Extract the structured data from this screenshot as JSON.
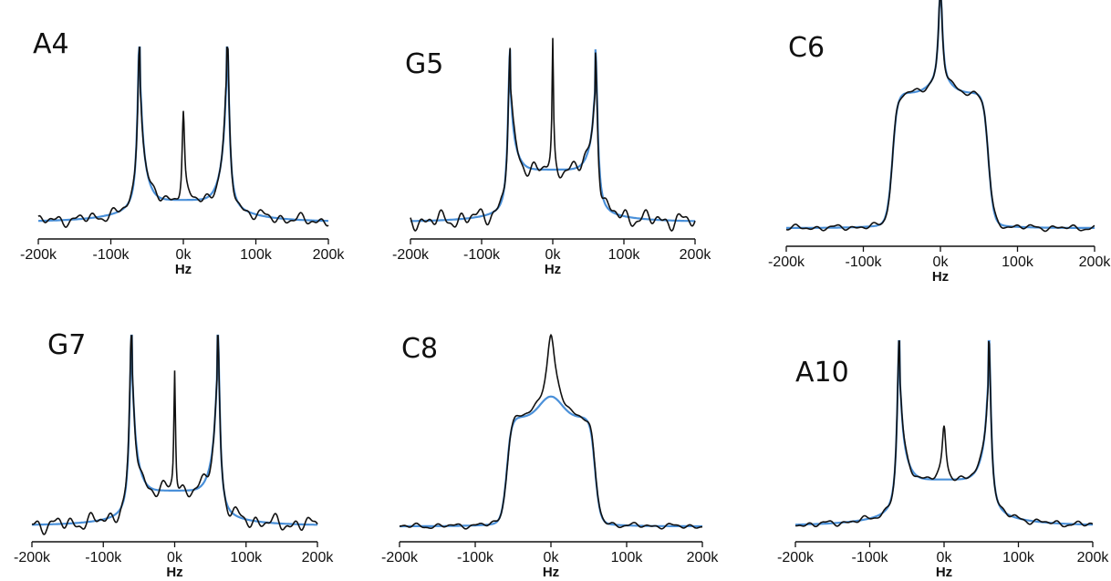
{
  "chart_data": [
    {
      "type": "line",
      "title": "A4",
      "xlabel": "Hz",
      "xlim": [
        -200000,
        200000
      ],
      "ylim": [
        0,
        1.15
      ],
      "xticks": [
        -200000,
        -100000,
        0,
        100000,
        200000
      ],
      "xtick_labels": [
        "-200k",
        "-100k",
        "0k",
        "100k",
        "200k"
      ],
      "model": {
        "kind": "pake",
        "horn": 60000,
        "peak": 1.0,
        "center": 0.15,
        "spike": 0.62,
        "spikeW": 2000,
        "tail": 0.1,
        "base": 0.0,
        "noise": 0.04
      },
      "series": [
        {
          "name": "",
          "color": "#111111"
        },
        {
          "name": "",
          "color": "#4a90d9"
        }
      ]
    },
    {
      "type": "line",
      "title": "G5",
      "xlabel": "Hz",
      "xlim": [
        -200000,
        200000
      ],
      "ylim": [
        0,
        1.15
      ],
      "xticks": [
        -200000,
        -100000,
        0,
        100000,
        200000
      ],
      "xtick_labels": [
        "-200k",
        "-100k",
        "0k",
        "100k",
        "200k"
      ],
      "model": {
        "kind": "pake",
        "horn": 60000,
        "peak": 0.78,
        "center": 0.3,
        "spike": 0.72,
        "spikeW": 1200,
        "tail": 0.06,
        "base": 0.0,
        "noise": 0.05
      },
      "series": [
        {
          "name": "",
          "color": "#111111"
        },
        {
          "name": "",
          "color": "#4a90d9"
        }
      ]
    },
    {
      "type": "line",
      "title": "C6",
      "xlabel": "Hz",
      "xlim": [
        -200000,
        200000
      ],
      "ylim": [
        0,
        1.15
      ],
      "xticks": [
        -200000,
        -100000,
        0,
        100000,
        200000
      ],
      "xtick_labels": [
        "-200k",
        "-100k",
        "0k",
        "100k",
        "200k"
      ],
      "model": {
        "kind": "plateau",
        "edge": 62000,
        "level": 0.68,
        "hump": 0.05,
        "spike": 0.5,
        "spikeW": 3000,
        "base": 0.0,
        "noise": 0.015
      },
      "series": [
        {
          "name": "",
          "color": "#111111"
        },
        {
          "name": "",
          "color": "#4a90d9"
        }
      ]
    },
    {
      "type": "line",
      "title": "G7",
      "xlabel": "Hz",
      "xlim": [
        -200000,
        200000
      ],
      "ylim": [
        0,
        1.15
      ],
      "xticks": [
        -200000,
        -100000,
        0,
        100000,
        200000
      ],
      "xtick_labels": [
        "-200k",
        "-100k",
        "0k",
        "100k",
        "200k"
      ],
      "model": {
        "kind": "pake",
        "horn": 60000,
        "peak": 0.98,
        "center": 0.22,
        "spike": 0.78,
        "spikeW": 1300,
        "tail": 0.07,
        "base": 0.0,
        "noise": 0.05
      },
      "series": [
        {
          "name": "",
          "color": "#111111"
        },
        {
          "name": "",
          "color": "#4a90d9"
        }
      ]
    },
    {
      "type": "line",
      "title": "C8",
      "xlabel": "Hz",
      "xlim": [
        -200000,
        200000
      ],
      "ylim": [
        0,
        1.15
      ],
      "xticks": [
        -200000,
        -100000,
        0,
        100000,
        200000
      ],
      "xtick_labels": [
        "-200k",
        "-100k",
        "0k",
        "100k",
        "200k"
      ],
      "model": {
        "kind": "plateau",
        "edge": 58000,
        "level": 0.6,
        "hump": 0.12,
        "spike": 0.35,
        "spikeW": 6000,
        "base": 0.0,
        "noise": 0.015
      },
      "series": [
        {
          "name": "",
          "color": "#111111"
        },
        {
          "name": "",
          "color": "#4a90d9"
        }
      ]
    },
    {
      "type": "line",
      "title": "A10",
      "xlabel": "Hz",
      "xlim": [
        -200000,
        200000
      ],
      "ylim": [
        0,
        1.15
      ],
      "xticks": [
        -200000,
        -100000,
        0,
        100000,
        200000
      ],
      "xtick_labels": [
        "-200k",
        "-100k",
        "0k",
        "100k",
        "200k"
      ],
      "model": {
        "kind": "pake",
        "horn": 60000,
        "peak": 0.97,
        "center": 0.3,
        "spike": 0.35,
        "spikeW": 3000,
        "tail": 0.09,
        "base": 0.0,
        "noise": 0.02
      },
      "series": [
        {
          "name": "",
          "color": "#111111"
        },
        {
          "name": "",
          "color": "#4a90d9"
        }
      ]
    }
  ]
}
